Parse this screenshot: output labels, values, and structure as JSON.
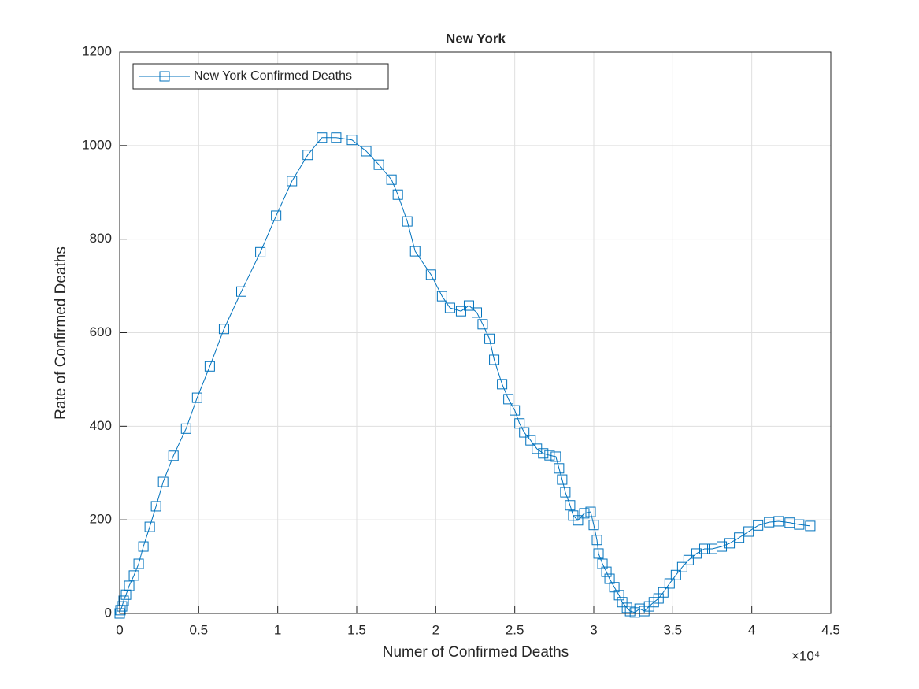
{
  "chart_data": {
    "type": "line",
    "title": "New York",
    "x_label": "Numer of Confirmed Deaths",
    "y_label": "Rate of Confirmed Deaths",
    "x_multiplier": "×10⁴",
    "xlim": [
      0,
      45000
    ],
    "ylim": [
      0,
      1200
    ],
    "xticks": [
      0,
      {
        "value": 5000,
        "label": "0.5"
      },
      {
        "value": 10000,
        "label": "1"
      },
      {
        "value": 15000,
        "label": "1.5"
      },
      {
        "value": 20000,
        "label": "2"
      },
      {
        "value": 25000,
        "label": "2.5"
      },
      {
        "value": 30000,
        "label": "3"
      },
      {
        "value": 35000,
        "label": "3.5"
      },
      {
        "value": 40000,
        "label": "4"
      },
      {
        "value": 45000,
        "label": "4.5"
      }
    ],
    "yticks": [
      0,
      200,
      400,
      600,
      800,
      1000,
      1200
    ],
    "grid": true,
    "legend_position": "upper-left",
    "series": [
      {
        "name": "New York Confirmed Deaths",
        "color": "#0072bd",
        "marker": "square",
        "x": [
          0,
          50,
          150,
          250,
          400,
          600,
          900,
          1200,
          1500,
          1900,
          2300,
          2750,
          3400,
          4200,
          4900,
          5700,
          6600,
          7700,
          8900,
          9900,
          10900,
          11900,
          12800,
          13700,
          14700,
          15600,
          16400,
          17200,
          17600,
          18200,
          18700,
          19700,
          20400,
          20900,
          21600,
          22100,
          22600,
          22970,
          23400,
          23700,
          24200,
          24600,
          25000,
          25300,
          25600,
          26000,
          26400,
          26800,
          27200,
          27600,
          27800,
          28000,
          28200,
          28500,
          28700,
          29000,
          29400,
          29800,
          30000,
          30200,
          30300,
          30550,
          30800,
          31000,
          31300,
          31600,
          31800,
          32100,
          32300,
          32600,
          32900,
          33200,
          33500,
          33800,
          34100,
          34400,
          34800,
          35200,
          35600,
          36000,
          36500,
          37000,
          37500,
          38100,
          38600,
          39200,
          39800,
          40400,
          41100,
          41700,
          42400,
          43000,
          43700
        ],
        "values": [
          0,
          7,
          15,
          27,
          40,
          59,
          81,
          106,
          143,
          185,
          229,
          281,
          337,
          395,
          461,
          528,
          608,
          688,
          772,
          850,
          924,
          980,
          1017,
          1017,
          1012,
          988,
          959,
          927,
          895,
          838,
          774,
          724,
          678,
          653,
          646,
          658,
          643,
          618,
          587,
          542,
          490,
          458,
          434,
          406,
          387,
          370,
          352,
          342,
          338,
          335,
          310,
          286,
          259,
          231,
          209,
          199,
          214,
          217,
          189,
          157,
          128,
          106,
          89,
          74,
          56,
          39,
          24,
          12,
          5,
          2,
          10,
          5,
          15,
          24,
          32,
          45,
          64,
          82,
          99,
          114,
          128,
          138,
          138,
          143,
          150,
          162,
          175,
          188,
          195,
          197,
          194,
          190,
          187
        ]
      }
    ]
  }
}
